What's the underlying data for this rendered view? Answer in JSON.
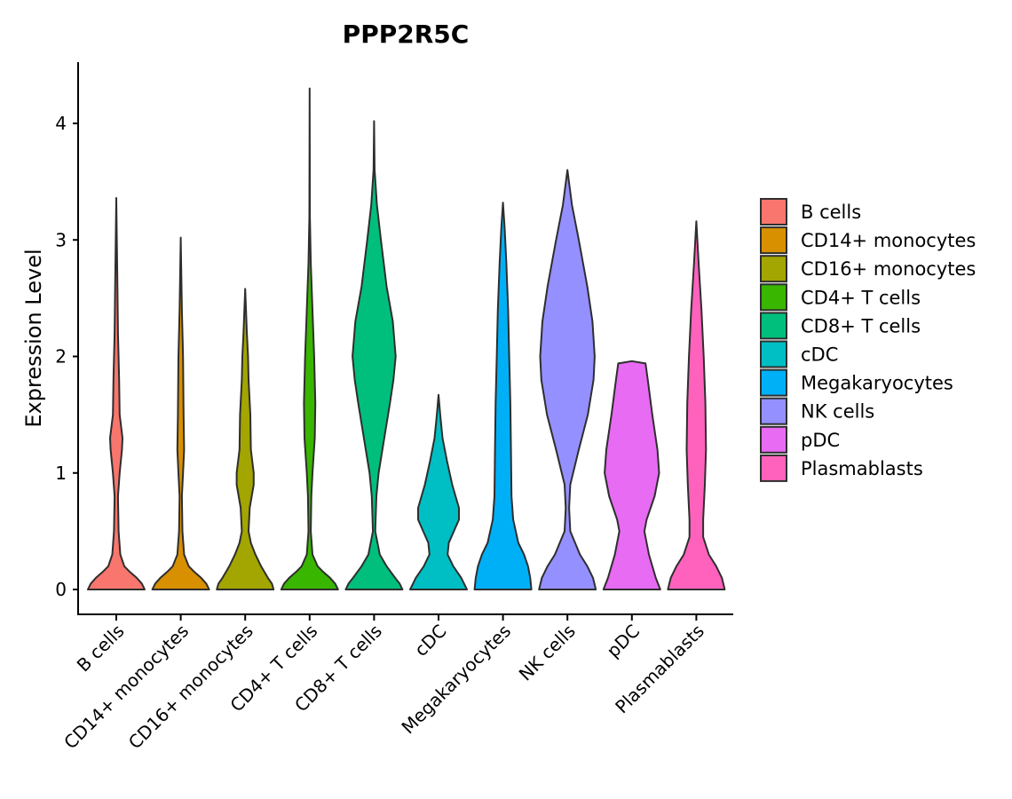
{
  "chart_data": {
    "type": "violin",
    "title": "PPP2R5C",
    "xlabel": "",
    "ylabel": "Expression Level",
    "ylim": [
      0,
      4.55
    ],
    "yticks": [
      0,
      1,
      2,
      3,
      4
    ],
    "grid": false,
    "legend_position": "right",
    "categories": [
      "B cells",
      "CD14+ monocytes",
      "CD16+ monocytes",
      "CD4+ T cells",
      "CD8+ T cells",
      "cDC",
      "Megakaryocytes",
      "NK cells",
      "pDC",
      "Plasmablasts"
    ],
    "colors": [
      "#F8766D",
      "#D89000",
      "#A3A500",
      "#39B600",
      "#00BF7D",
      "#00BFC4",
      "#00B0F6",
      "#9590FF",
      "#E76BF3",
      "#FF62BC"
    ],
    "series": [
      {
        "name": "B cells",
        "max": 3.36,
        "profile": [
          [
            0,
            0.5
          ],
          [
            0.05,
            0.45
          ],
          [
            0.1,
            0.36
          ],
          [
            0.15,
            0.24
          ],
          [
            0.2,
            0.14
          ],
          [
            0.3,
            0.07
          ],
          [
            0.5,
            0.04
          ],
          [
            0.8,
            0.03
          ],
          [
            1.0,
            0.06
          ],
          [
            1.2,
            0.1
          ],
          [
            1.3,
            0.11
          ],
          [
            1.5,
            0.06
          ],
          [
            1.8,
            0.05
          ],
          [
            2.2,
            0.03
          ],
          [
            2.6,
            0.02
          ],
          [
            3.0,
            0.01
          ],
          [
            3.36,
            0.0
          ]
        ]
      },
      {
        "name": "CD14+ monocytes",
        "max": 3.02,
        "profile": [
          [
            0,
            0.5
          ],
          [
            0.05,
            0.45
          ],
          [
            0.1,
            0.36
          ],
          [
            0.15,
            0.24
          ],
          [
            0.2,
            0.14
          ],
          [
            0.3,
            0.06
          ],
          [
            0.5,
            0.03
          ],
          [
            0.8,
            0.02
          ],
          [
            1.0,
            0.04
          ],
          [
            1.2,
            0.06
          ],
          [
            1.5,
            0.05
          ],
          [
            2.0,
            0.04
          ],
          [
            2.4,
            0.02
          ],
          [
            3.02,
            0.0
          ]
        ]
      },
      {
        "name": "CD16+ monocytes",
        "max": 2.58,
        "profile": [
          [
            0,
            0.5
          ],
          [
            0.05,
            0.47
          ],
          [
            0.1,
            0.4
          ],
          [
            0.2,
            0.28
          ],
          [
            0.3,
            0.18
          ],
          [
            0.4,
            0.1
          ],
          [
            0.5,
            0.06
          ],
          [
            0.7,
            0.08
          ],
          [
            0.9,
            0.15
          ],
          [
            1.0,
            0.15
          ],
          [
            1.2,
            0.1
          ],
          [
            1.5,
            0.09
          ],
          [
            1.8,
            0.06
          ],
          [
            2.0,
            0.05
          ],
          [
            2.2,
            0.03
          ],
          [
            2.58,
            0.0
          ]
        ]
      },
      {
        "name": "CD4+ T cells",
        "max": 4.3,
        "profile": [
          [
            0,
            0.5
          ],
          [
            0.05,
            0.45
          ],
          [
            0.1,
            0.36
          ],
          [
            0.15,
            0.24
          ],
          [
            0.2,
            0.14
          ],
          [
            0.3,
            0.05
          ],
          [
            0.5,
            0.02
          ],
          [
            0.8,
            0.03
          ],
          [
            1.0,
            0.05
          ],
          [
            1.3,
            0.09
          ],
          [
            1.6,
            0.1
          ],
          [
            2.0,
            0.08
          ],
          [
            2.4,
            0.05
          ],
          [
            2.8,
            0.02
          ],
          [
            3.2,
            0.005
          ],
          [
            4.3,
            0.0
          ]
        ]
      },
      {
        "name": "CD8+ T cells",
        "max": 4.02,
        "profile": [
          [
            0,
            0.5
          ],
          [
            0.05,
            0.45
          ],
          [
            0.1,
            0.37
          ],
          [
            0.2,
            0.22
          ],
          [
            0.3,
            0.1
          ],
          [
            0.5,
            0.02
          ],
          [
            0.8,
            0.04
          ],
          [
            1.0,
            0.08
          ],
          [
            1.3,
            0.18
          ],
          [
            1.6,
            0.28
          ],
          [
            1.8,
            0.34
          ],
          [
            2.0,
            0.38
          ],
          [
            2.3,
            0.33
          ],
          [
            2.6,
            0.22
          ],
          [
            3.0,
            0.12
          ],
          [
            3.3,
            0.05
          ],
          [
            3.6,
            0.01
          ],
          [
            4.02,
            0.0
          ]
        ]
      },
      {
        "name": "cDC",
        "max": 1.67,
        "profile": [
          [
            0,
            0.5
          ],
          [
            0.1,
            0.4
          ],
          [
            0.2,
            0.26
          ],
          [
            0.3,
            0.16
          ],
          [
            0.4,
            0.18
          ],
          [
            0.5,
            0.27
          ],
          [
            0.6,
            0.36
          ],
          [
            0.7,
            0.36
          ],
          [
            0.9,
            0.24
          ],
          [
            1.1,
            0.15
          ],
          [
            1.3,
            0.07
          ],
          [
            1.5,
            0.03
          ],
          [
            1.67,
            0.0
          ]
        ]
      },
      {
        "name": "Megakaryocytes",
        "max": 3.32,
        "profile": [
          [
            0,
            0.5
          ],
          [
            0.1,
            0.48
          ],
          [
            0.2,
            0.44
          ],
          [
            0.3,
            0.37
          ],
          [
            0.4,
            0.27
          ],
          [
            0.6,
            0.18
          ],
          [
            0.8,
            0.15
          ],
          [
            1.2,
            0.14
          ],
          [
            1.6,
            0.13
          ],
          [
            2.0,
            0.11
          ],
          [
            2.4,
            0.09
          ],
          [
            2.8,
            0.06
          ],
          [
            3.1,
            0.03
          ],
          [
            3.32,
            0.0
          ]
        ]
      },
      {
        "name": "NK cells",
        "max": 3.6,
        "profile": [
          [
            0,
            0.5
          ],
          [
            0.1,
            0.45
          ],
          [
            0.2,
            0.35
          ],
          [
            0.3,
            0.22
          ],
          [
            0.5,
            0.05
          ],
          [
            0.7,
            0.03
          ],
          [
            0.9,
            0.05
          ],
          [
            1.2,
            0.2
          ],
          [
            1.5,
            0.36
          ],
          [
            1.8,
            0.46
          ],
          [
            2.0,
            0.48
          ],
          [
            2.3,
            0.44
          ],
          [
            2.6,
            0.35
          ],
          [
            3.0,
            0.2
          ],
          [
            3.3,
            0.08
          ],
          [
            3.6,
            0.0
          ]
        ]
      },
      {
        "name": "pDC",
        "max": 1.96,
        "profile": [
          [
            0,
            0.5
          ],
          [
            0.1,
            0.42
          ],
          [
            0.3,
            0.3
          ],
          [
            0.5,
            0.22
          ],
          [
            0.6,
            0.26
          ],
          [
            0.8,
            0.4
          ],
          [
            1.0,
            0.48
          ],
          [
            1.2,
            0.45
          ],
          [
            1.5,
            0.36
          ],
          [
            1.8,
            0.28
          ],
          [
            1.94,
            0.24
          ],
          [
            1.96,
            0.0
          ]
        ]
      },
      {
        "name": "Plasmablasts",
        "max": 3.16,
        "profile": [
          [
            0,
            0.5
          ],
          [
            0.1,
            0.45
          ],
          [
            0.2,
            0.35
          ],
          [
            0.3,
            0.22
          ],
          [
            0.45,
            0.12
          ],
          [
            0.6,
            0.12
          ],
          [
            0.9,
            0.15
          ],
          [
            1.2,
            0.17
          ],
          [
            1.6,
            0.16
          ],
          [
            2.0,
            0.13
          ],
          [
            2.4,
            0.09
          ],
          [
            2.8,
            0.04
          ],
          [
            3.16,
            0.0
          ]
        ]
      }
    ]
  }
}
